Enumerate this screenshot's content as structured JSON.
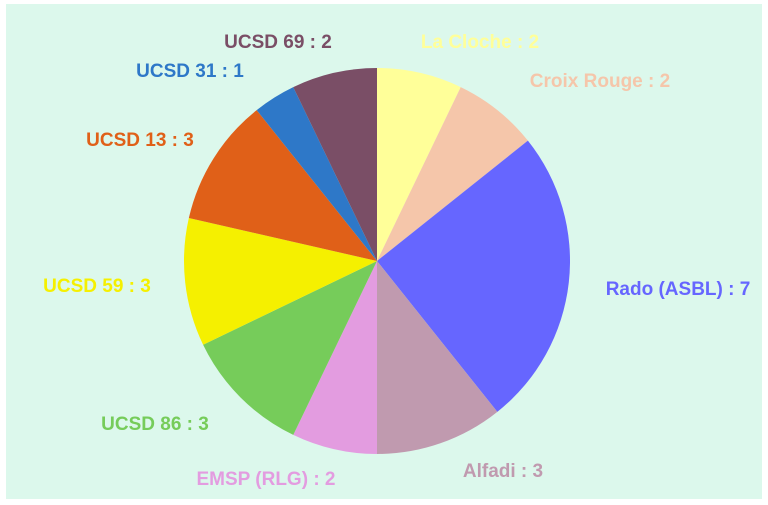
{
  "chart_data": {
    "type": "pie",
    "categories": [
      "La Cloche : 2",
      "Croix Rouge : 2",
      "Rado (ASBL) : 7",
      "Alfadi : 3",
      "EMSP (RLG) : 2",
      "UCSD 86 : 3",
      "UCSD 59 : 3",
      "UCSD 13 : 3",
      "UCSD 31 : 1",
      "UCSD 69 : 2"
    ],
    "values": [
      2,
      2,
      7,
      3,
      2,
      3,
      3,
      3,
      1,
      2
    ],
    "colors": [
      "#ffff99",
      "#f5c6aa",
      "#6666ff",
      "#c09aaf",
      "#e39ce0",
      "#76cc5a",
      "#f5f000",
      "#e06018",
      "#2e78c8",
      "#7a4e66"
    ]
  }
}
